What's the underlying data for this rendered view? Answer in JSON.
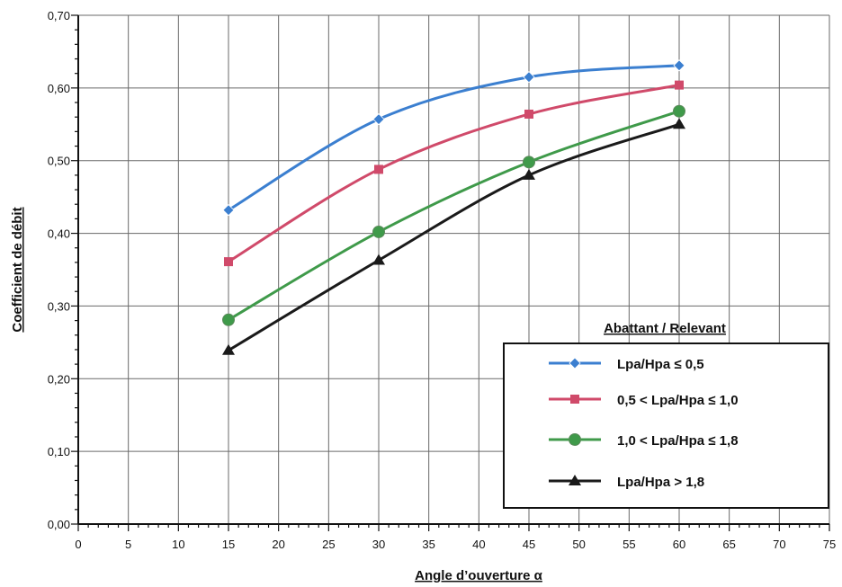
{
  "chart_data": {
    "type": "line",
    "xlabel": "Angle d’ouverture α",
    "ylabel": "Coefficient de débit",
    "xlim": [
      0,
      75
    ],
    "ylim": [
      0,
      0.7
    ],
    "x_ticks": [
      "0",
      "5",
      "10",
      "15",
      "20",
      "25",
      "30",
      "35",
      "40",
      "45",
      "50",
      "55",
      "60",
      "65",
      "70",
      "75"
    ],
    "y_ticks": [
      "0,00",
      "0,10",
      "0,20",
      "0,30",
      "0,40",
      "0,50",
      "0,60",
      "0,70"
    ],
    "grid": true,
    "legend_title": "Abattant / Relevant",
    "legend_position": "bottom-right",
    "series": [
      {
        "name": "Lpa/Hpa ≤ 0,5",
        "color": "#3b7fd0",
        "marker": "diamond",
        "x": [
          15,
          30,
          45,
          60
        ],
        "y": [
          0.432,
          0.557,
          0.615,
          0.631
        ]
      },
      {
        "name": "0,5 < Lpa/Hpa ≤ 1,0",
        "color": "#d04a6a",
        "marker": "square",
        "x": [
          15,
          30,
          45,
          60
        ],
        "y": [
          0.361,
          0.488,
          0.564,
          0.604
        ]
      },
      {
        "name": "1,0 < Lpa/Hpa ≤ 1,8",
        "color": "#3f9a4a",
        "marker": "circle",
        "x": [
          15,
          30,
          45,
          60
        ],
        "y": [
          0.281,
          0.402,
          0.498,
          0.568
        ]
      },
      {
        "name": "Lpa/Hpa > 1,8",
        "color": "#1a1a1a",
        "marker": "triangle",
        "x": [
          15,
          30,
          45,
          60
        ],
        "y": [
          0.239,
          0.363,
          0.48,
          0.55
        ]
      }
    ]
  }
}
